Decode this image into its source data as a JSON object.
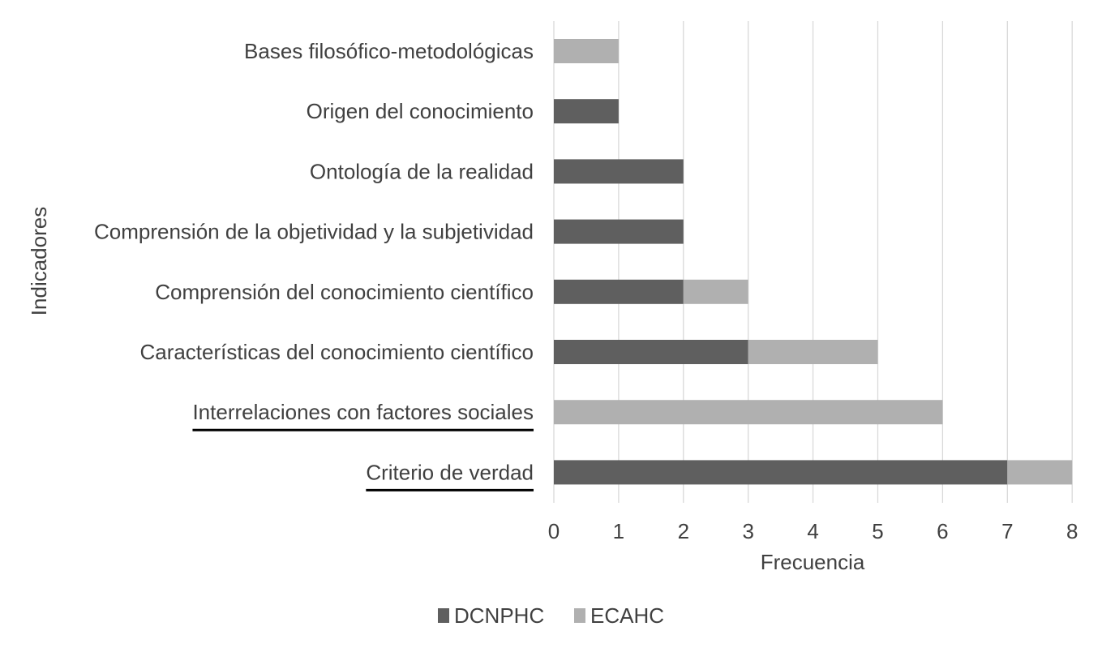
{
  "chart_data": {
    "type": "bar",
    "orientation": "horizontal",
    "stacked": true,
    "categories": [
      "Bases filosófico-metodológicas",
      "Origen del conocimiento",
      "Ontología de la realidad",
      "Comprensión de la objetividad y la subjetividad",
      "Comprensión del conocimiento científico",
      "Características del conocimiento científico",
      "Interrelaciones con factores sociales",
      "Criterio de verdad"
    ],
    "underlined_categories": [
      "Interrelaciones con factores sociales",
      "Criterio de verdad"
    ],
    "series": [
      {
        "name": "DCNPHC",
        "color": "#5f5f5f",
        "values": [
          0,
          1,
          2,
          2,
          2,
          3,
          0,
          7
        ]
      },
      {
        "name": "ECAHC",
        "color": "#b0b0b0",
        "values": [
          1,
          0,
          0,
          0,
          1,
          2,
          6,
          1
        ]
      }
    ],
    "xlabel": "Frecuencia",
    "ylabel": "Indicadores",
    "xlim": [
      0,
      8
    ],
    "xticks": [
      "0",
      "1",
      "2",
      "3",
      "4",
      "5",
      "6",
      "7",
      "8"
    ],
    "grid": "vertical",
    "legend_position": "bottom"
  }
}
